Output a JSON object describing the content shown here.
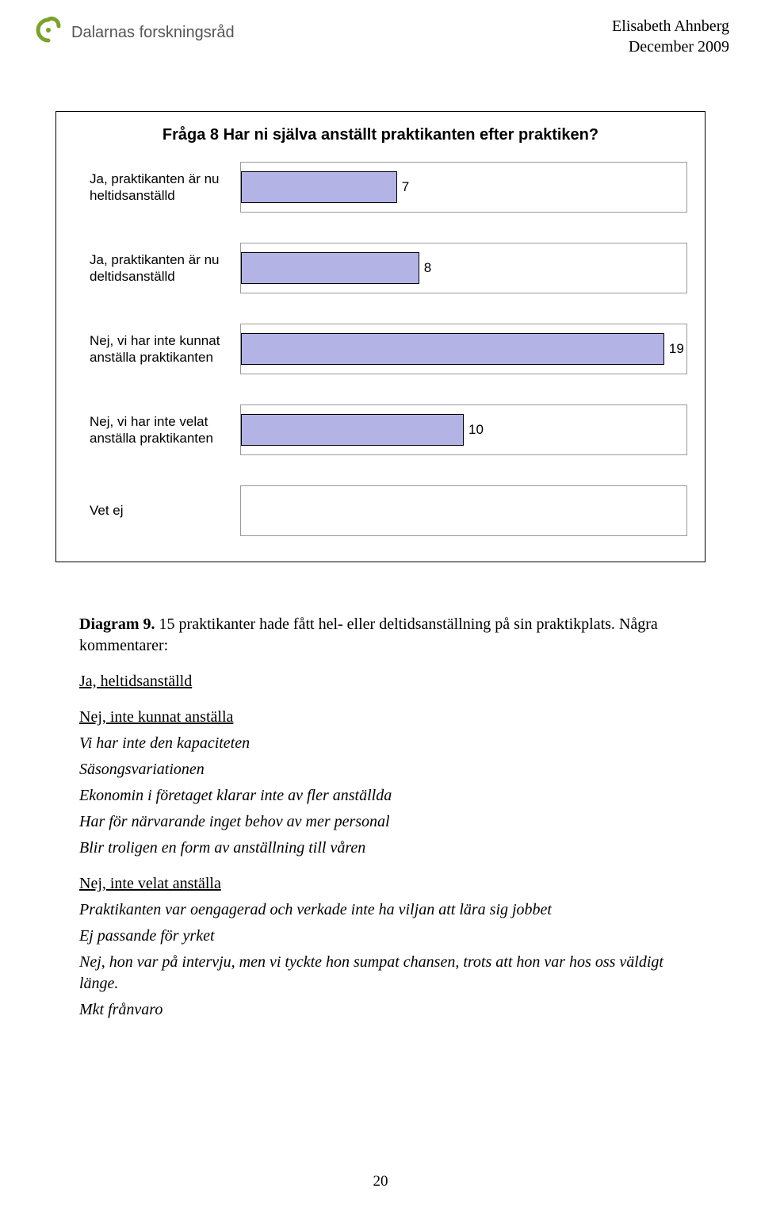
{
  "header": {
    "logo_text": "Dalarnas forskningsråd",
    "logo_mark_color_stroke": "#7aa22e",
    "author": "Elisabeth Ahnberg",
    "date": "December 2009"
  },
  "chart": {
    "type": "bar",
    "title": "Fråga 8 Har ni själva anställt praktikanten efter praktiken?",
    "x_max": 20,
    "bar_color": "#b3b3e6",
    "bar_border": "#000000",
    "cell_border": "#999999",
    "title_fontsize": 20,
    "label_fontsize": 17,
    "rows": [
      {
        "label": "Ja, praktikanten är nu heltidsanställd",
        "value": 7
      },
      {
        "label": "Ja, praktikanten är nu deltidsanställd",
        "value": 8
      },
      {
        "label": "Nej, vi har inte kunnat anställa praktikanten",
        "value": 19
      },
      {
        "label": "Nej, vi har inte velat anställa praktikanten",
        "value": 10
      },
      {
        "label": "Vet ej",
        "value": null
      }
    ]
  },
  "body": {
    "diagram_label": "Diagram 9.",
    "diagram_text": " 15 praktikanter hade fått hel- eller deltidsanställning på sin praktikplats. Några kommentarer:",
    "sec1_head": "Ja, heltidsanställd",
    "sec2_head": "Nej, inte kunnat anställa",
    "sec2_lines": [
      "Vi har inte den kapaciteten",
      "Säsongsvariationen",
      "Ekonomin i företaget klarar inte av fler anställda",
      "Har för närvarande inget behov av mer personal",
      "Blir troligen en form av anställning till våren"
    ],
    "sec3_head": "Nej, inte velat anställa",
    "sec3_lines": [
      "Praktikanten var oengagerad och verkade inte ha viljan att lära sig jobbet",
      "Ej passande för yrket",
      "Nej, hon var på intervju, men vi tyckte hon sumpat chansen, trots att hon var hos oss väldigt länge.",
      "Mkt frånvaro"
    ]
  },
  "page_number": "20"
}
